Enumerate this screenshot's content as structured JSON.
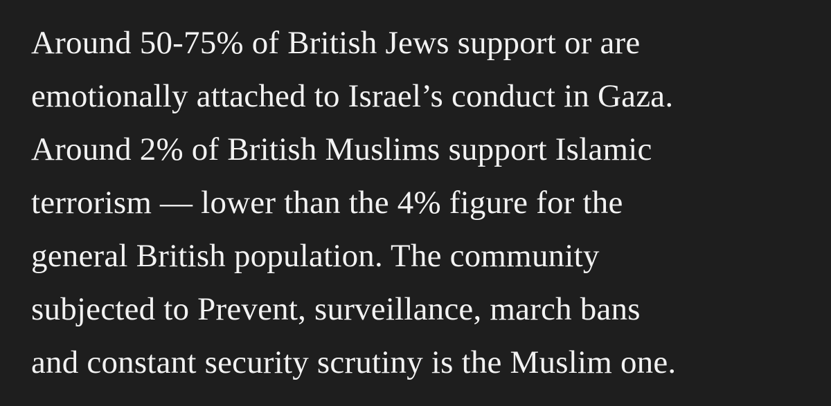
{
  "paragraph": {
    "lines": [
      "Around 50-75% of British Jews support or are",
      "emotionally attached to Israel’s conduct in Gaza.",
      "Around 2% of British Muslims support Islamic",
      "terrorism — lower than the 4% figure for the",
      "general British population. The community",
      "subjected to Prevent, surveillance, march bans",
      "and constant security scrutiny is the Muslim one."
    ]
  }
}
